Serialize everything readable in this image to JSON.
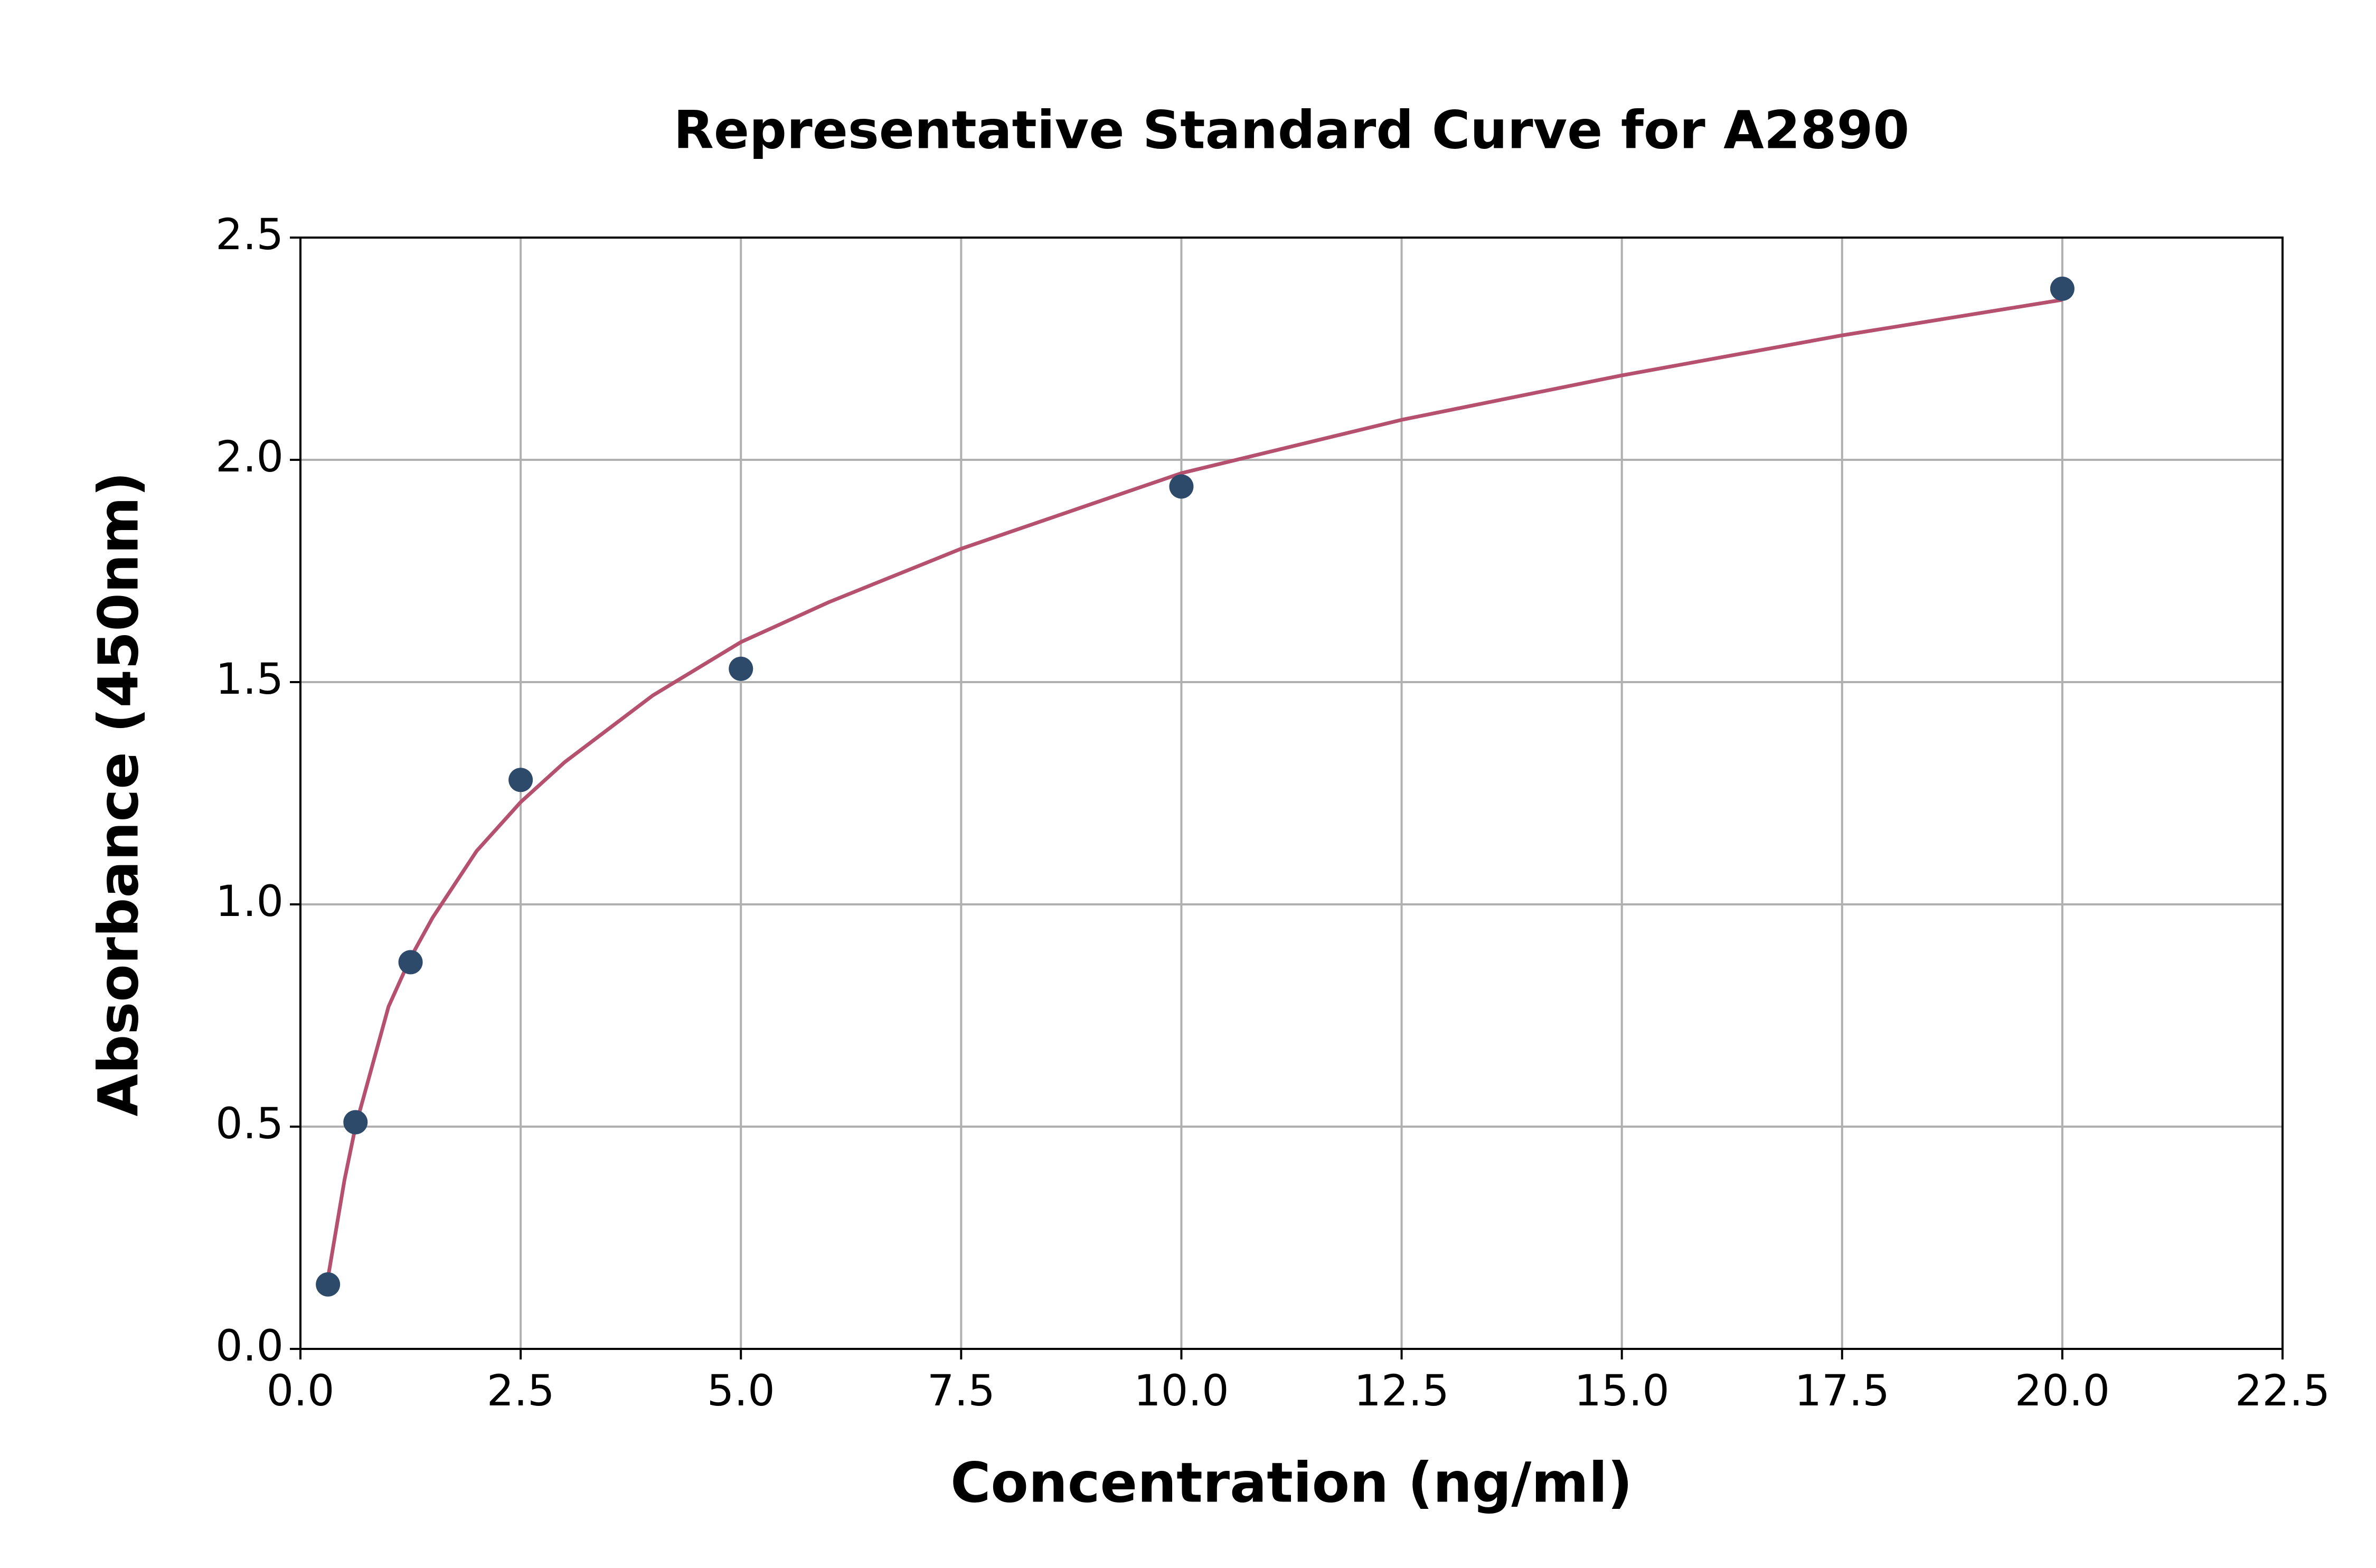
{
  "chart_data": {
    "type": "scatter",
    "title": "Representative Standard Curve for A2890",
    "xlabel": "Concentration (ng/ml)",
    "ylabel": "Absorbance (450nm)",
    "xlim": [
      0,
      22.5
    ],
    "ylim": [
      0,
      2.5
    ],
    "xticks": [
      {
        "value": 0,
        "label": "0.0"
      },
      2.5,
      {
        "value": 5,
        "label": "5.0"
      },
      7.5,
      {
        "value": 10,
        "label": "10.0"
      },
      12.5,
      {
        "value": 15,
        "label": "15.0"
      },
      17.5,
      {
        "value": 20,
        "label": "20.0"
      },
      22.5
    ],
    "yticks": [
      {
        "value": 0,
        "label": "0.0"
      },
      0.5,
      {
        "value": 1,
        "label": "1.0"
      },
      1.5,
      {
        "value": 2,
        "label": "2.0"
      },
      2.5
    ],
    "grid": true,
    "series": [
      {
        "type": "line",
        "color": "#b5506f",
        "x": [
          0.3125,
          0.5,
          0.625,
          1,
          1.25,
          1.5,
          2,
          2.5,
          3,
          4,
          5,
          6,
          7.5,
          10,
          12.5,
          15,
          17.5,
          20
        ],
        "values": [
          0.16,
          0.38,
          0.5,
          0.77,
          0.88,
          0.97,
          1.12,
          1.23,
          1.32,
          1.47,
          1.59,
          1.68,
          1.8,
          1.97,
          2.09,
          2.19,
          2.28,
          2.36
        ]
      },
      {
        "type": "scatter",
        "color": "#2d4a6b",
        "x": [
          0.3125,
          0.625,
          1.25,
          2.5,
          5,
          10,
          20
        ],
        "values": [
          0.145,
          0.51,
          0.87,
          1.28,
          1.53,
          1.94,
          2.385
        ]
      }
    ]
  }
}
